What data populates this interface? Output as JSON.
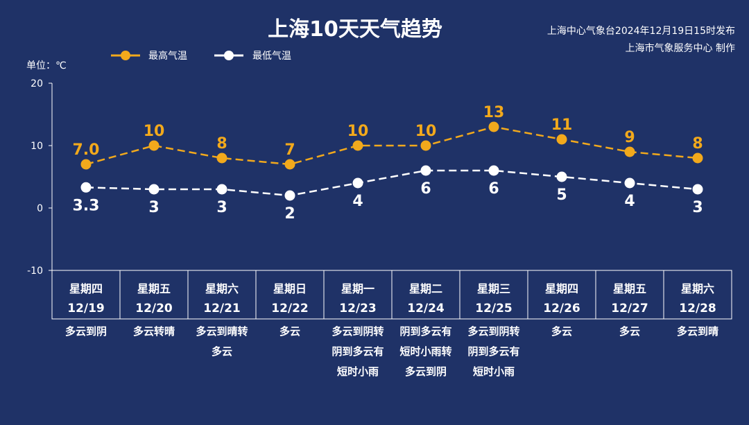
{
  "header": {
    "title": "上海10天天气趋势",
    "issuer_line1": "上海中心气象台2024年12月19日15时发布",
    "issuer_line2": "上海市气象服务中心 制作"
  },
  "legend": {
    "high_label": "最高气温",
    "low_label": "最低气温"
  },
  "unit_label": "单位：℃",
  "colors": {
    "background": "#1f3267",
    "high": "#f2a91c",
    "low": "#ffffff"
  },
  "chart_data": {
    "type": "line",
    "title": "上海10天天气趋势",
    "ylabel": "单位：℃",
    "ylim": [
      -10,
      20
    ],
    "yticks": [
      20,
      10,
      0,
      -10
    ],
    "grid": false,
    "legend_position": "top-left",
    "categories": [
      "12/19",
      "12/20",
      "12/21",
      "12/22",
      "12/23",
      "12/24",
      "12/25",
      "12/26",
      "12/27",
      "12/28"
    ],
    "weekdays": [
      "星期四",
      "星期五",
      "星期六",
      "星期日",
      "星期一",
      "星期二",
      "星期三",
      "星期四",
      "星期五",
      "星期六"
    ],
    "weather": [
      [
        "多云到阴"
      ],
      [
        "多云转晴"
      ],
      [
        "多云到晴转",
        "多云"
      ],
      [
        "多云"
      ],
      [
        "多云到阴转",
        "阴到多云有",
        "短时小雨"
      ],
      [
        "阴到多云有",
        "短时小雨转",
        "多云到阴"
      ],
      [
        "多云到阴转",
        "阴到多云有",
        "短时小雨"
      ],
      [
        "多云"
      ],
      [
        "多云"
      ],
      [
        "多云到晴"
      ]
    ],
    "series": [
      {
        "name": "最高气温",
        "values": [
          7.0,
          10,
          8,
          7,
          10,
          10,
          13,
          11,
          9,
          8
        ],
        "labels": [
          "7.0",
          "10",
          "8",
          "7",
          "10",
          "10",
          "13",
          "11",
          "9",
          "8"
        ]
      },
      {
        "name": "最低气温",
        "values": [
          3.3,
          3,
          3,
          2,
          4,
          6,
          6,
          5,
          4,
          3
        ],
        "labels": [
          "3.3",
          "3",
          "3",
          "2",
          "4",
          "6",
          "6",
          "5",
          "4",
          "3"
        ]
      }
    ]
  }
}
